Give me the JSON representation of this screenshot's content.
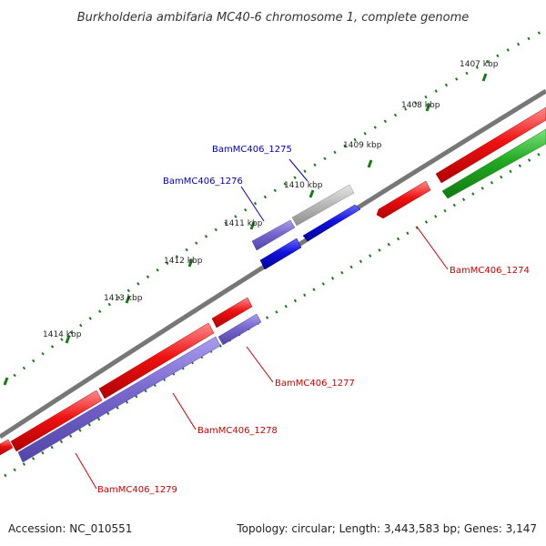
{
  "title": "Burkholderia ambifaria MC40-6 chromosome 1, complete genome",
  "footer": {
    "accession": "Accession: NC_010551",
    "summary": "Topology: circular; Length: 3,443,583 bp; Genes: 3,147"
  },
  "ticks": [
    "1407 kbp",
    "1408 kbp",
    "1409 kbp",
    "1410 kbp",
    "1411 kbp",
    "1412 kbp",
    "1413 kbp",
    "1414 kbp"
  ],
  "genes": {
    "g1274": "BamMC406_1274",
    "g1275": "BamMC406_1275",
    "g1276": "BamMC406_1276",
    "g1277": "BamMC406_1277",
    "g1278": "BamMC406_1278",
    "g1279": "BamMC406_1279"
  },
  "colors": {
    "backbone": "#7a7a7a",
    "red_gene": "#ee1111",
    "blue_gene": "#1111dd",
    "purple_gene": "#7766cc",
    "grey_gene": "#bbbbbb",
    "green_gene": "#22aa22",
    "tick_green": "#1a7a1a",
    "label_red": "#cc0000",
    "label_blue": "#0000bb"
  }
}
